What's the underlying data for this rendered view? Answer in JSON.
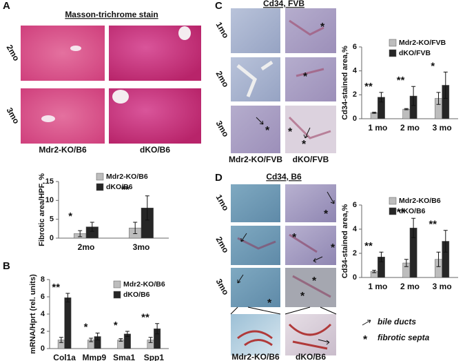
{
  "figure": {
    "panel_labels": [
      "A",
      "B",
      "C",
      "D"
    ],
    "a": {
      "title": "Masson-trichrome stain",
      "rows": [
        "2mo",
        "3mo"
      ],
      "columns": [
        "Mdr2-KO/B6",
        "dKO/B6"
      ]
    },
    "c": {
      "title": "Cd34, FVB",
      "rows": [
        "1mo",
        "2mo",
        "3mo"
      ],
      "columns": [
        "Mdr2-KO/FVB",
        "dKO/FVB"
      ]
    },
    "d": {
      "title": "Cd34, B6",
      "rows": [
        "1mo",
        "2mo",
        "3mo"
      ],
      "columns": [
        "Mdr2-KO/B6",
        "dKO/B6"
      ]
    },
    "key": {
      "bile_ducts": "bile ducts",
      "star": "*",
      "fibrotic_septa": "fibrotic septa"
    }
  },
  "chart_data": [
    {
      "type": "bar",
      "ylabel": "Fibrotic area/HPF, %",
      "categories": [
        "2mo",
        "3mo"
      ],
      "series": [
        {
          "name": "Mdr2-KO/B6",
          "color": "#bdbdbd",
          "values": [
            1.2,
            2.7
          ],
          "errors": [
            0.8,
            1.5
          ]
        },
        {
          "name": "dKO/B6",
          "color": "#262626",
          "values": [
            3.0,
            8.0
          ],
          "errors": [
            1.2,
            3.2
          ]
        }
      ],
      "significance": [
        "*",
        "**"
      ],
      "ylim": [
        0,
        15
      ],
      "yticks": [
        0,
        5,
        10,
        15
      ],
      "legend": "top-right"
    },
    {
      "type": "bar",
      "ylabel": "mRNA/Hprt (rel. units)",
      "categories": [
        "Col1a",
        "Mmp9",
        "Sma1",
        "Spp1"
      ],
      "series": [
        {
          "name": "Mdr2-KO/B6",
          "color": "#bdbdbd",
          "values": [
            1.0,
            1.0,
            1.0,
            1.0
          ],
          "errors": [
            0.3,
            0.2,
            0.15,
            0.3
          ]
        },
        {
          "name": "dKO/B6",
          "color": "#262626",
          "values": [
            5.9,
            1.4,
            1.7,
            2.3
          ],
          "errors": [
            0.5,
            0.4,
            0.3,
            0.6
          ]
        }
      ],
      "significance": [
        "**",
        "*",
        "*",
        "**"
      ],
      "ylim": [
        0,
        8
      ],
      "yticks": [
        0,
        2,
        4,
        6,
        8
      ],
      "legend": "top-right"
    },
    {
      "type": "bar",
      "ylabel": "Cd34-stained area,%",
      "categories": [
        "1 mo",
        "2 mo",
        "3 mo"
      ],
      "series": [
        {
          "name": "Mdr2-KO/FVB",
          "color": "#bdbdbd",
          "values": [
            0.5,
            0.8,
            1.7
          ],
          "errors": [
            0.05,
            0.05,
            0.5
          ]
        },
        {
          "name": "dKO/FVB",
          "color": "#262626",
          "values": [
            1.8,
            1.9,
            2.8
          ],
          "errors": [
            0.4,
            0.8,
            1.1
          ]
        }
      ],
      "significance": [
        "**",
        "**",
        "*"
      ],
      "ylim": [
        0,
        6
      ],
      "yticks": [
        0,
        2,
        4,
        6
      ],
      "legend": "top-right"
    },
    {
      "type": "bar",
      "ylabel": "Cd34-stained area,%",
      "categories": [
        "1 mo",
        "2 mo",
        "3 mo"
      ],
      "series": [
        {
          "name": "Mdr2-KO/B6",
          "color": "#bdbdbd",
          "values": [
            0.5,
            1.2,
            1.5
          ],
          "errors": [
            0.1,
            0.3,
            0.6
          ]
        },
        {
          "name": "dKO/B6",
          "color": "#262626",
          "values": [
            1.7,
            4.1,
            3.0
          ],
          "errors": [
            0.4,
            0.8,
            0.9
          ]
        }
      ],
      "significance": [
        "**",
        "**",
        "**"
      ],
      "ylim": [
        0,
        6
      ],
      "yticks": [
        0,
        2,
        4,
        6
      ],
      "legend": "top-right"
    }
  ]
}
